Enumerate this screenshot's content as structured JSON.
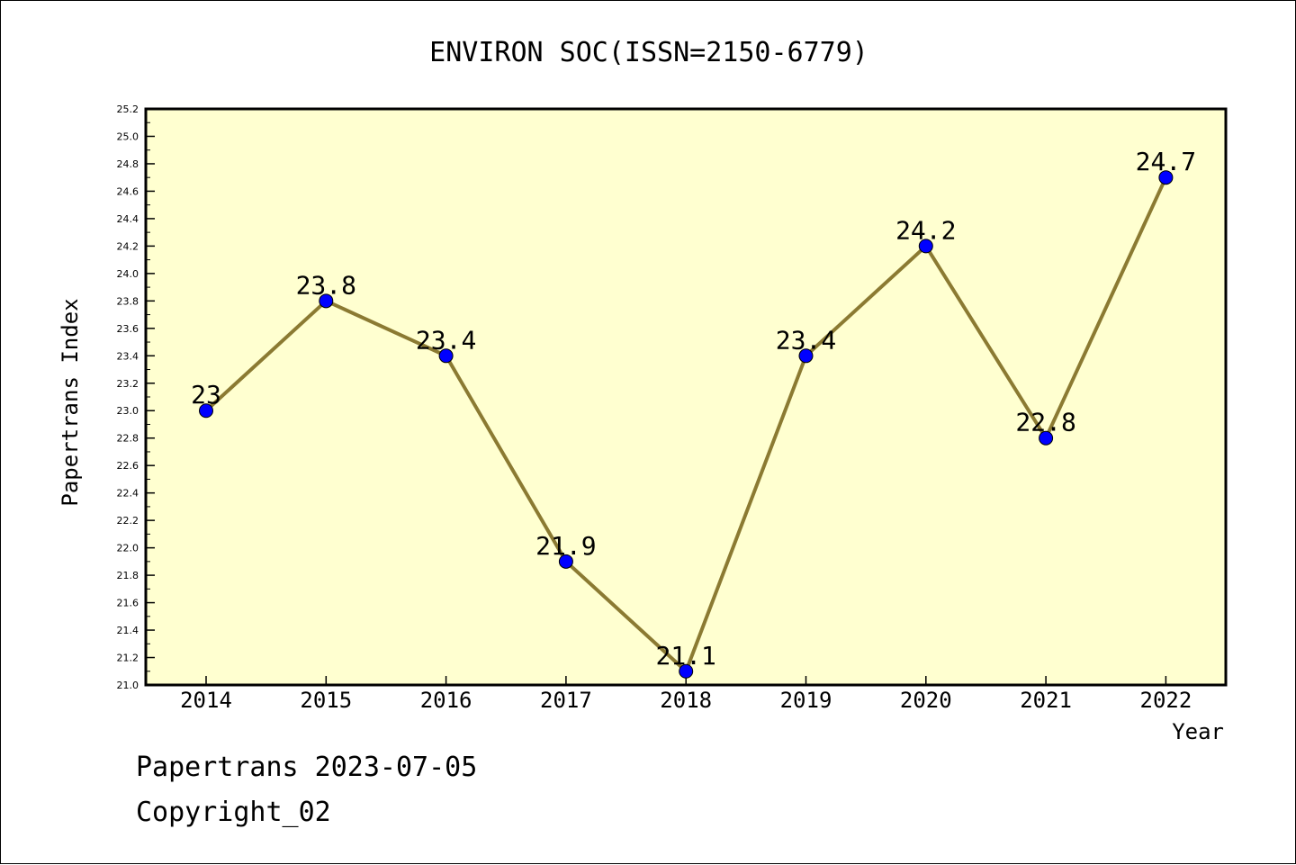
{
  "footer": {
    "line1": "Papertrans 2023-07-05",
    "line2": "Copyright_02"
  },
  "colors": {
    "plot_bg": "#ffffd0",
    "line": "#8b7a32",
    "marker": "#0000ff"
  },
  "chart_data": {
    "type": "line",
    "title": "ENVIRON SOC(ISSN=2150-6779)",
    "xlabel": "Year",
    "ylabel": "Papertrans Index",
    "x": [
      "2014",
      "2015",
      "2016",
      "2017",
      "2018",
      "2019",
      "2020",
      "2021",
      "2022"
    ],
    "values": [
      23,
      23.8,
      23.4,
      21.9,
      21.1,
      23.4,
      24.2,
      22.8,
      24.7
    ],
    "data_labels": [
      "23",
      "23.8",
      "23.4",
      "21.9",
      "21.1",
      "23.4",
      "24.2",
      "22.8",
      "24.7"
    ],
    "ylim": [
      21.0,
      25.2
    ],
    "y_ticks": [
      "21.0",
      "21.2",
      "21.4",
      "21.6",
      "21.8",
      "22.0",
      "22.2",
      "22.4",
      "22.6",
      "22.8",
      "23.0",
      "23.2",
      "23.4",
      "23.6",
      "23.8",
      "24.0",
      "24.2",
      "24.4",
      "24.6",
      "24.8",
      "25.0",
      "25.2"
    ],
    "grid": false,
    "legend": "none"
  }
}
